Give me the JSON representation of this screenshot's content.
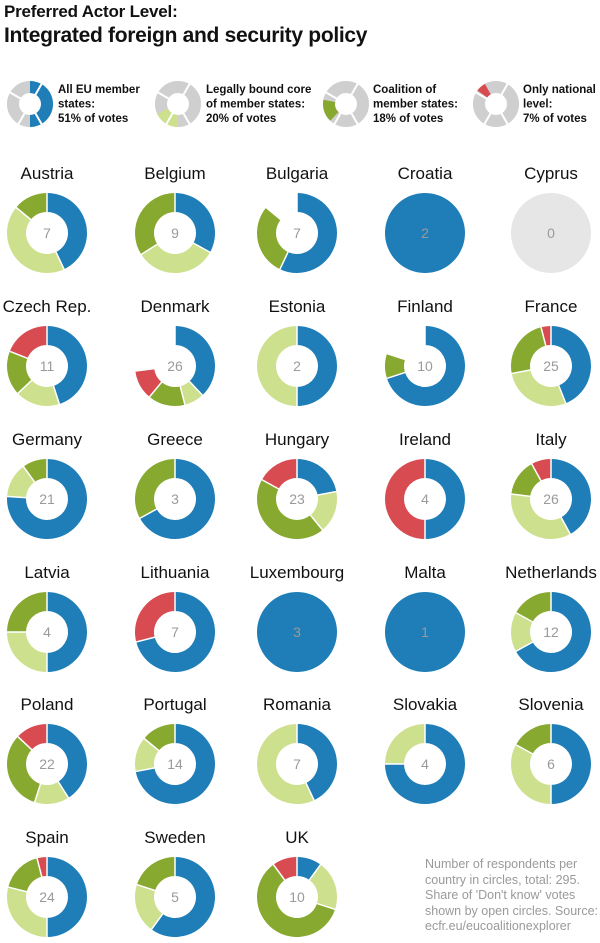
{
  "header": {
    "title": "Preferred Actor Level:",
    "subtitle": "Integrated foreign and security policy"
  },
  "colors": {
    "all_eu": "#1f7eb8",
    "core": "#cde08e",
    "coalition": "#87a930",
    "national": "#d84b50",
    "dont_know": "#e6e6e6"
  },
  "legend": [
    {
      "key": "all_eu",
      "lines": [
        "All EU member",
        "states:",
        "51% of votes"
      ]
    },
    {
      "key": "core",
      "lines": [
        "Legally bound core",
        "of member states:",
        "20% of votes"
      ]
    },
    {
      "key": "coalition",
      "lines": [
        "Coalition of",
        "member states:",
        "18% of votes"
      ]
    },
    {
      "key": "national",
      "lines": [
        "Only national",
        "level:",
        "7% of votes"
      ]
    }
  ],
  "note": [
    "Number of respondents per",
    "country in circles, total: 295.",
    "Share of 'Don't know' votes",
    "shown by open circles. Source:",
    "ecfr.eu/eucoalitionexplorer"
  ],
  "chart_data": {
    "type": "pie",
    "style": "donut-small-multiples",
    "title": "Preferred Actor Level:",
    "subtitle": "Integrated foreign and security policy",
    "series_order": [
      "all_eu",
      "core",
      "coalition",
      "national",
      "dont_know"
    ],
    "legend_shares": {
      "all_eu": 51,
      "core": 20,
      "coalition": 18,
      "national": 7
    },
    "countries": [
      {
        "name": "Austria",
        "n": 7,
        "shares": {
          "all_eu": 0.43,
          "core": 0.43,
          "coalition": 0.14,
          "national": 0,
          "dont_know": 0
        }
      },
      {
        "name": "Belgium",
        "n": 9,
        "shares": {
          "all_eu": 0.33,
          "core": 0.33,
          "coalition": 0.34,
          "national": 0,
          "dont_know": 0
        }
      },
      {
        "name": "Bulgaria",
        "n": 7,
        "shares": {
          "all_eu": 0.57,
          "core": 0,
          "coalition": 0.29,
          "national": 0,
          "dont_know": 0.14
        }
      },
      {
        "name": "Croatia",
        "n": 2,
        "shares": {
          "all_eu": 1.0,
          "core": 0,
          "coalition": 0,
          "national": 0,
          "dont_know": 0
        }
      },
      {
        "name": "Cyprus",
        "n": 0,
        "shares": {
          "all_eu": 0,
          "core": 0,
          "coalition": 0,
          "national": 0,
          "dont_know": 1.0
        }
      },
      {
        "name": "Czech Rep.",
        "n": 11,
        "shares": {
          "all_eu": 0.45,
          "core": 0.18,
          "coalition": 0.18,
          "national": 0.19,
          "dont_know": 0
        }
      },
      {
        "name": "Denmark",
        "n": 26,
        "shares": {
          "all_eu": 0.38,
          "core": 0.08,
          "coalition": 0.15,
          "national": 0.12,
          "dont_know": 0.27
        }
      },
      {
        "name": "Estonia",
        "n": 2,
        "shares": {
          "all_eu": 0.5,
          "core": 0.5,
          "coalition": 0,
          "national": 0,
          "dont_know": 0
        }
      },
      {
        "name": "Finland",
        "n": 10,
        "shares": {
          "all_eu": 0.7,
          "core": 0,
          "coalition": 0.1,
          "national": 0,
          "dont_know": 0.2
        }
      },
      {
        "name": "France",
        "n": 25,
        "shares": {
          "all_eu": 0.44,
          "core": 0.28,
          "coalition": 0.24,
          "national": 0.04,
          "dont_know": 0
        }
      },
      {
        "name": "Germany",
        "n": 21,
        "shares": {
          "all_eu": 0.76,
          "core": 0.14,
          "coalition": 0.1,
          "national": 0,
          "dont_know": 0
        }
      },
      {
        "name": "Greece",
        "n": 3,
        "shares": {
          "all_eu": 0.67,
          "core": 0,
          "coalition": 0.33,
          "national": 0,
          "dont_know": 0
        }
      },
      {
        "name": "Hungary",
        "n": 23,
        "shares": {
          "all_eu": 0.22,
          "core": 0.17,
          "coalition": 0.44,
          "national": 0.17,
          "dont_know": 0
        }
      },
      {
        "name": "Ireland",
        "n": 4,
        "shares": {
          "all_eu": 0.5,
          "core": 0,
          "coalition": 0,
          "national": 0.5,
          "dont_know": 0
        }
      },
      {
        "name": "Italy",
        "n": 26,
        "shares": {
          "all_eu": 0.42,
          "core": 0.35,
          "coalition": 0.15,
          "national": 0.08,
          "dont_know": 0
        }
      },
      {
        "name": "Latvia",
        "n": 4,
        "shares": {
          "all_eu": 0.5,
          "core": 0.25,
          "coalition": 0.25,
          "national": 0,
          "dont_know": 0
        }
      },
      {
        "name": "Lithuania",
        "n": 7,
        "shares": {
          "all_eu": 0.71,
          "core": 0,
          "coalition": 0,
          "national": 0.29,
          "dont_know": 0
        }
      },
      {
        "name": "Luxembourg",
        "n": 3,
        "shares": {
          "all_eu": 1.0,
          "core": 0,
          "coalition": 0,
          "national": 0,
          "dont_know": 0
        }
      },
      {
        "name": "Malta",
        "n": 1,
        "shares": {
          "all_eu": 1.0,
          "core": 0,
          "coalition": 0,
          "national": 0,
          "dont_know": 0
        }
      },
      {
        "name": "Netherlands",
        "n": 12,
        "shares": {
          "all_eu": 0.67,
          "core": 0.16,
          "coalition": 0.17,
          "national": 0,
          "dont_know": 0
        }
      },
      {
        "name": "Poland",
        "n": 22,
        "shares": {
          "all_eu": 0.41,
          "core": 0.14,
          "coalition": 0.32,
          "national": 0.13,
          "dont_know": 0
        }
      },
      {
        "name": "Portugal",
        "n": 14,
        "shares": {
          "all_eu": 0.72,
          "core": 0.14,
          "coalition": 0.14,
          "national": 0,
          "dont_know": 0
        }
      },
      {
        "name": "Romania",
        "n": 7,
        "shares": {
          "all_eu": 0.43,
          "core": 0.57,
          "coalition": 0,
          "national": 0,
          "dont_know": 0
        }
      },
      {
        "name": "Slovakia",
        "n": 4,
        "shares": {
          "all_eu": 0.75,
          "core": 0.25,
          "coalition": 0,
          "national": 0,
          "dont_know": 0
        }
      },
      {
        "name": "Slovenia",
        "n": 6,
        "shares": {
          "all_eu": 0.5,
          "core": 0.33,
          "coalition": 0.17,
          "national": 0,
          "dont_know": 0
        }
      },
      {
        "name": "Spain",
        "n": 24,
        "shares": {
          "all_eu": 0.5,
          "core": 0.29,
          "coalition": 0.17,
          "national": 0.04,
          "dont_know": 0
        }
      },
      {
        "name": "Sweden",
        "n": 5,
        "shares": {
          "all_eu": 0.6,
          "core": 0.2,
          "coalition": 0.2,
          "national": 0,
          "dont_know": 0
        }
      },
      {
        "name": "UK",
        "n": 10,
        "shares": {
          "all_eu": 0.1,
          "core": 0.2,
          "coalition": 0.6,
          "national": 0.1,
          "dont_know": 0
        }
      }
    ]
  }
}
